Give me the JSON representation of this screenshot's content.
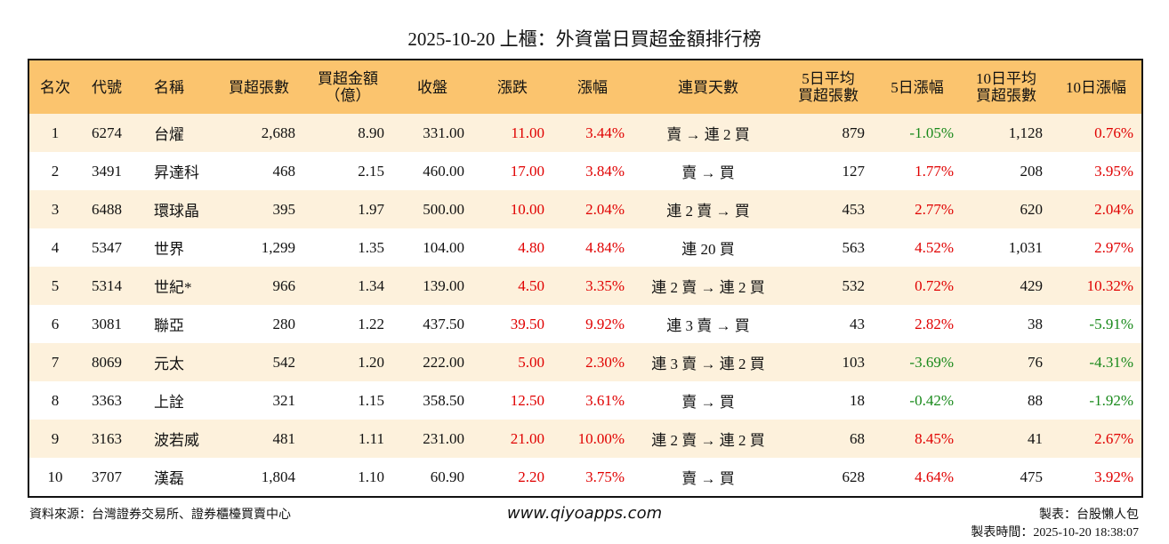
{
  "header": {
    "title": "2025-10-20 上櫃：外資當日買超金額排行榜"
  },
  "table": {
    "headers": [
      [
        "名次"
      ],
      [
        "代號"
      ],
      [
        "名稱"
      ],
      [
        "買超張數"
      ],
      [
        "買超金額",
        "（億）"
      ],
      [
        "收盤"
      ],
      [
        "漲跌"
      ],
      [
        "漲幅"
      ],
      [
        "連買天數"
      ],
      [
        "5日平均",
        "買超張數"
      ],
      [
        "5日漲幅"
      ],
      [
        "10日平均",
        "買超張數"
      ],
      [
        "10日漲幅"
      ]
    ],
    "rows": [
      [
        "1",
        "6274",
        "台燿",
        "2,688",
        "8.90",
        "331.00",
        "11.00",
        "3.44%",
        "賣 → 連 2 買",
        "879",
        "-1.05%",
        "1,128",
        "0.76%"
      ],
      [
        "2",
        "3491",
        "昇達科",
        "468",
        "2.15",
        "460.00",
        "17.00",
        "3.84%",
        "賣 → 買",
        "127",
        "1.77%",
        "208",
        "3.95%"
      ],
      [
        "3",
        "6488",
        "環球晶",
        "395",
        "1.97",
        "500.00",
        "10.00",
        "2.04%",
        "連 2 賣 → 買",
        "453",
        "2.77%",
        "620",
        "2.04%"
      ],
      [
        "4",
        "5347",
        "世界",
        "1,299",
        "1.35",
        "104.00",
        "4.80",
        "4.84%",
        "連 20 買",
        "563",
        "4.52%",
        "1,031",
        "2.97%"
      ],
      [
        "5",
        "5314",
        "世紀*",
        "966",
        "1.34",
        "139.00",
        "4.50",
        "3.35%",
        "連 2 賣 → 連 2 買",
        "532",
        "0.72%",
        "429",
        "10.32%"
      ],
      [
        "6",
        "3081",
        "聯亞",
        "280",
        "1.22",
        "437.50",
        "39.50",
        "9.92%",
        "連 3 賣 → 買",
        "43",
        "2.82%",
        "38",
        "-5.91%"
      ],
      [
        "7",
        "8069",
        "元太",
        "542",
        "1.20",
        "222.00",
        "5.00",
        "2.30%",
        "連 3 賣 → 連 2 買",
        "103",
        "-3.69%",
        "76",
        "-4.31%"
      ],
      [
        "8",
        "3363",
        "上詮",
        "321",
        "1.15",
        "358.50",
        "12.50",
        "3.61%",
        "賣 → 買",
        "18",
        "-0.42%",
        "88",
        "-1.92%"
      ],
      [
        "9",
        "3163",
        "波若威",
        "481",
        "1.11",
        "231.00",
        "21.00",
        "10.00%",
        "連 2 賣 → 連 2 買",
        "68",
        "8.45%",
        "41",
        "2.67%"
      ],
      [
        "10",
        "3707",
        "漢磊",
        "1,804",
        "1.10",
        "60.90",
        "2.20",
        "3.75%",
        "賣 → 買",
        "628",
        "4.64%",
        "475",
        "3.92%"
      ]
    ]
  },
  "footer": {
    "source": "資料來源：台灣證券交易所、證券櫃檯買賣中心",
    "site": "www.qiyoapps.com",
    "maker": "製表：台股懶人包",
    "time": "製表時間：2025-10-20 18:38:07"
  }
}
